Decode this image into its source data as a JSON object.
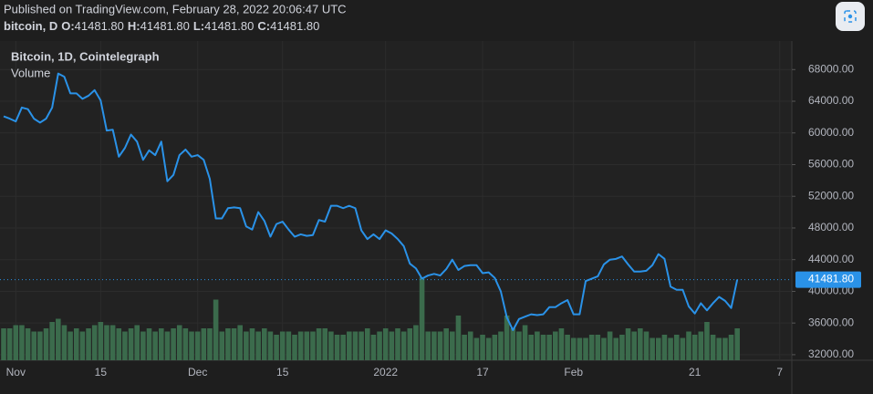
{
  "header": {
    "published": "Published on TradingView.com, February 28, 2022 20:06:47 UTC",
    "symbol": "bitcoin, D",
    "ohlc": [
      {
        "key": "O:",
        "value": "41481.80"
      },
      {
        "key": "H:",
        "value": "41481.80"
      },
      {
        "key": "L:",
        "value": "41481.80"
      },
      {
        "key": "C:",
        "value": "41481.80"
      }
    ]
  },
  "chart_data": {
    "type": "line",
    "categories": [
      null,
      null,
      "Nov",
      null,
      null,
      null,
      null,
      null,
      null,
      null,
      null,
      null,
      null,
      null,
      null,
      null,
      "15",
      null,
      null,
      null,
      null,
      null,
      null,
      null,
      null,
      null,
      null,
      null,
      null,
      null,
      null,
      null,
      "Dec",
      null,
      null,
      null,
      null,
      null,
      null,
      null,
      null,
      null,
      null,
      null,
      null,
      null,
      "15",
      null,
      null,
      null,
      null,
      null,
      null,
      null,
      null,
      null,
      null,
      null,
      null,
      null,
      null,
      null,
      null,
      "2022",
      null,
      null,
      null,
      null,
      null,
      null,
      null,
      null,
      null,
      null,
      null,
      null,
      null,
      null,
      null,
      "17",
      null,
      null,
      null,
      null,
      null,
      null,
      null,
      null,
      null,
      null,
      null,
      null,
      null,
      null,
      "Feb",
      null,
      null,
      null,
      null,
      null,
      null,
      null,
      null,
      null,
      null,
      null,
      null,
      null,
      null,
      null,
      null,
      null,
      null,
      null,
      "21",
      null,
      null,
      null,
      null,
      null,
      null,
      null,
      null,
      null,
      null,
      null,
      null,
      null,
      "7",
      null,
      null
    ],
    "series": [
      {
        "name": "Bitcoin, 1D, Cointelegraph",
        "color": "#2a92e8",
        "values": [
          62100,
          61800,
          61450,
          63200,
          63000,
          61800,
          61300,
          61800,
          63200,
          67500,
          67100,
          65000,
          65000,
          64300,
          64700,
          65400,
          64100,
          60300,
          60400,
          57000,
          58100,
          59800,
          58900,
          56600,
          57800,
          57200,
          58900,
          53900,
          54700,
          57200,
          57900,
          57000,
          57200,
          56600,
          54200,
          49200,
          49200,
          50500,
          50600,
          50500,
          48200,
          47800,
          50000,
          48900,
          46900,
          48500,
          48800,
          47800,
          46900,
          47200,
          47000,
          47100,
          49000,
          48800,
          50800,
          50800,
          50500,
          50800,
          50500,
          47700,
          46600,
          47200,
          46600,
          47700,
          47300,
          46600,
          45700,
          43500,
          42900,
          41600,
          42000,
          42200,
          42000,
          42800,
          44000,
          42700,
          43200,
          43300,
          43300,
          42300,
          42400,
          41700,
          40000,
          36700,
          35100,
          36500,
          36800,
          37100,
          37000,
          37100,
          38000,
          38000,
          38500,
          38900,
          37100,
          37100,
          41300,
          41600,
          41900,
          43400,
          44000,
          44100,
          44400,
          43400,
          42500,
          42500,
          42600,
          43300,
          44700,
          44100,
          40600,
          40200,
          40200,
          38100,
          37200,
          38500,
          37600,
          38500,
          39300,
          38800,
          37900,
          41481.8,
          null,
          null,
          null,
          null,
          null,
          null,
          null,
          null,
          null
        ]
      },
      {
        "name": "Volume",
        "type": "bar",
        "axis": "y2",
        "color": "#3b6b4c",
        "values": [
          10,
          10,
          11,
          11,
          10,
          9,
          9,
          10,
          12,
          13,
          11,
          9,
          10,
          9,
          10,
          11,
          12,
          11,
          11,
          10,
          9,
          10,
          11,
          9,
          10,
          9,
          10,
          9,
          10,
          11,
          10,
          9,
          9,
          10,
          10,
          19,
          9,
          10,
          10,
          11,
          9,
          10,
          9,
          10,
          9,
          8,
          9,
          9,
          8,
          9,
          9,
          9,
          10,
          10,
          9,
          8,
          8,
          9,
          9,
          9,
          10,
          8,
          9,
          10,
          9,
          10,
          9,
          10,
          11,
          26,
          9,
          9,
          9,
          10,
          9,
          14,
          8,
          9,
          7,
          8,
          7,
          8,
          9,
          14,
          10,
          9,
          11,
          8,
          9,
          8,
          8,
          9,
          10,
          8,
          7,
          7,
          7,
          8,
          8,
          7,
          9,
          7,
          8,
          10,
          9,
          10,
          9,
          7,
          7,
          8,
          7,
          8,
          7,
          9,
          8,
          9,
          12,
          8,
          7,
          7,
          8,
          10,
          null,
          null,
          null,
          null,
          null,
          null,
          null,
          null,
          null
        ]
      }
    ],
    "ylim": [
      31300,
      71600
    ],
    "yticks": [
      {
        "value": 32000,
        "label": "32000.00"
      },
      {
        "value": 36000,
        "label": "36000.00"
      },
      {
        "value": 40000,
        "label": "40000.00"
      },
      {
        "value": 44000,
        "label": "44000.00"
      },
      {
        "value": 48000,
        "label": "48000.00"
      },
      {
        "value": 52000,
        "label": "52000.00"
      },
      {
        "value": 56000,
        "label": "56000.00"
      },
      {
        "value": 60000,
        "label": "60000.00"
      },
      {
        "value": 64000,
        "label": "64000.00"
      },
      {
        "value": 68000,
        "label": "68000.00"
      }
    ],
    "y2lim": [
      0,
      100
    ],
    "grid": true,
    "last_price": {
      "value": 41481.8,
      "label": "41481.80"
    }
  }
}
